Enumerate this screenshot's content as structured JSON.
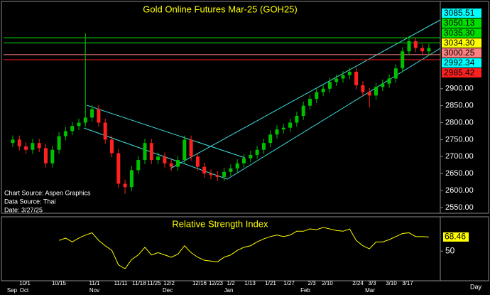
{
  "chart_data": [
    {
      "type": "candlestick",
      "title": "Gold Online Futures Mar-25 (GOH25)",
      "open": [
        2740,
        2750,
        2730,
        2720,
        2740,
        2725,
        2680,
        2720,
        2760,
        2775,
        2790,
        2800,
        2815,
        2840,
        2800,
        2750,
        2710,
        2620,
        2610,
        2660,
        2690,
        2740,
        2690,
        2700,
        2680,
        2670,
        2690,
        2750,
        2700,
        2670,
        2650,
        2645,
        2640,
        2655,
        2665,
        2680,
        2695,
        2705,
        2720,
        2740,
        2765,
        2780,
        2785,
        2800,
        2820,
        2850,
        2870,
        2890,
        2900,
        2920,
        2930,
        2940,
        2950,
        2910,
        2890,
        2880,
        2905,
        2915,
        2930,
        2960,
        3010,
        3040,
        3020,
        3010
      ],
      "high": [
        2762,
        2762,
        2742,
        2752,
        2752,
        2737,
        2732,
        2772,
        2787,
        2802,
        2812,
        3063,
        2852,
        2852,
        2812,
        2762,
        2722,
        2632,
        2672,
        2702,
        2752,
        2752,
        2712,
        2712,
        2692,
        2702,
        2762,
        2762,
        2712,
        2682,
        2662,
        2657,
        2667,
        2677,
        2692,
        2707,
        2717,
        2732,
        2752,
        2777,
        2792,
        2797,
        2812,
        2832,
        2862,
        2882,
        2902,
        2912,
        2932,
        2942,
        2952,
        2962,
        2962,
        2922,
        2902,
        2917,
        2927,
        2942,
        2972,
        3022,
        3055,
        3052,
        3032,
        3032
      ],
      "low": [
        2728,
        2718,
        2708,
        2708,
        2713,
        2668,
        2668,
        2708,
        2748,
        2763,
        2778,
        2788,
        2803,
        2788,
        2738,
        2698,
        2608,
        2590,
        2598,
        2648,
        2678,
        2678,
        2678,
        2668,
        2658,
        2658,
        2678,
        2688,
        2658,
        2638,
        2633,
        2628,
        2628,
        2643,
        2653,
        2668,
        2683,
        2693,
        2708,
        2728,
        2753,
        2768,
        2773,
        2788,
        2808,
        2838,
        2858,
        2878,
        2888,
        2908,
        2918,
        2928,
        2898,
        2878,
        2845,
        2868,
        2893,
        2903,
        2918,
        2948,
        2998,
        3008,
        2998,
        2998
      ],
      "close": [
        2750,
        2730,
        2720,
        2740,
        2725,
        2680,
        2720,
        2760,
        2775,
        2790,
        2800,
        2815,
        2840,
        2800,
        2750,
        2710,
        2620,
        2610,
        2660,
        2690,
        2740,
        2690,
        2700,
        2680,
        2670,
        2690,
        2750,
        2700,
        2670,
        2650,
        2645,
        2640,
        2655,
        2665,
        2680,
        2695,
        2705,
        2720,
        2740,
        2765,
        2780,
        2785,
        2800,
        2820,
        2850,
        2870,
        2890,
        2900,
        2920,
        2930,
        2940,
        2950,
        2910,
        2890,
        2880,
        2905,
        2915,
        2930,
        2960,
        3010,
        3040,
        3020,
        3010,
        3020
      ],
      "up_color": "#00c000",
      "down_color": "#ff2020",
      "ylim": [
        2533,
        3153
      ],
      "yticks": [
        {
          "value": 2550,
          "label": "2550.00"
        },
        {
          "value": 2600,
          "label": "2600.00"
        },
        {
          "value": 2650,
          "label": "2650.00"
        },
        {
          "value": 2700,
          "label": "2700.00"
        },
        {
          "value": 2750,
          "label": "2750.00"
        },
        {
          "value": 2800,
          "label": "2800.00"
        },
        {
          "value": 2850,
          "label": "2850.00"
        },
        {
          "value": 2900,
          "label": "2900.00"
        }
      ],
      "levels": [
        {
          "value": 3085.51,
          "label": "3085.51",
          "color": "#00ffff",
          "line": false
        },
        {
          "value": 3050.13,
          "label": "3050.13",
          "color": "#00e000",
          "line": true
        },
        {
          "value": 3035.3,
          "label": "3035.30",
          "color": "#00e000",
          "line": true
        },
        {
          "value": 3034.3,
          "label": "3034.30",
          "color": "#ffff00",
          "line": false
        },
        {
          "value": 3000.25,
          "label": "3000.25",
          "color": "#ff8080",
          "line": true
        },
        {
          "value": 2992.34,
          "label": "2992.34",
          "color": "#00ffff",
          "line": false
        },
        {
          "value": 2985.42,
          "label": "2985.42",
          "color": "#ff2020",
          "line": true
        }
      ],
      "notes": [
        "Chart Source: Aspen Graphics",
        "Data Source: Thai",
        "Date: 3/27/25"
      ],
      "x_labels": [
        "10/1",
        "10/15",
        "11/1",
        "11/11",
        "11/18",
        "11/25",
        "12/2",
        "12/16",
        "12/23",
        "1/2",
        "1/13",
        "1/21",
        "1/27",
        "2/3",
        "2/10",
        "2/24",
        "3/3",
        "3/10",
        "3/17"
      ],
      "months": [
        "Sep",
        "Oct",
        "Nov",
        "Dec",
        "Jan",
        "Feb",
        "Mar"
      ],
      "x_label": "Day"
    },
    {
      "type": "line",
      "title": "Relative Strength Index",
      "color": "#ffff00",
      "values": [
        null,
        null,
        null,
        null,
        null,
        null,
        null,
        64,
        67,
        62,
        67,
        71,
        74,
        64,
        57,
        51,
        32,
        27,
        39,
        45,
        55,
        45,
        48,
        45,
        42,
        46,
        57,
        48,
        42,
        38,
        37,
        36,
        42,
        45,
        51,
        55,
        57,
        62,
        66,
        69,
        71,
        69,
        71,
        76,
        76,
        79,
        78,
        81,
        79,
        77,
        76,
        79,
        64,
        57,
        53,
        62,
        62,
        65,
        69,
        73,
        74,
        69,
        69,
        68.46
      ],
      "ylim": [
        14,
        93
      ],
      "yticks": [
        50
      ],
      "annotation": {
        "value": 68.46,
        "label": "68.46"
      }
    }
  ]
}
